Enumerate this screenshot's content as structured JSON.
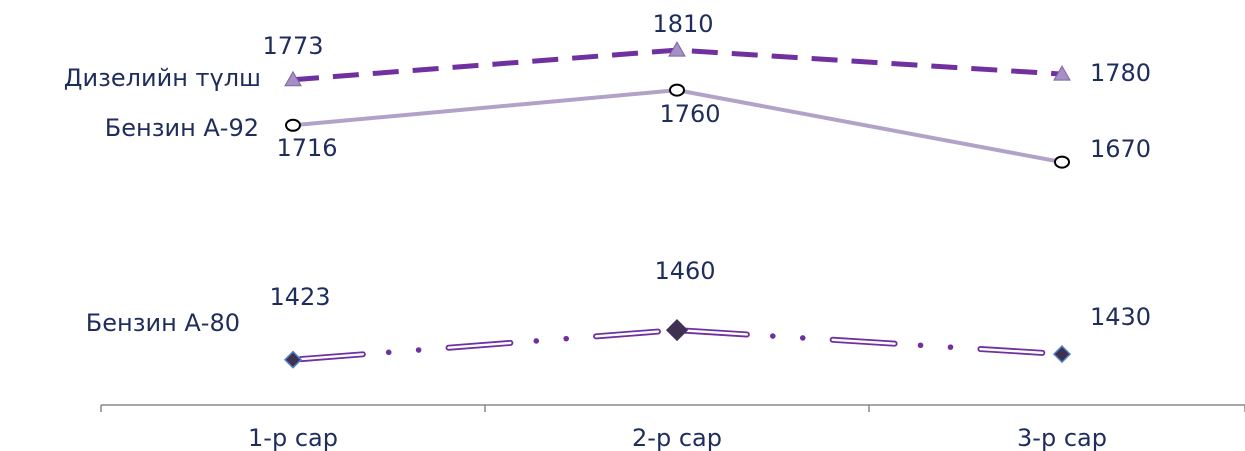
{
  "chart_data": {
    "type": "line",
    "title": "",
    "xlabel": "",
    "ylabel": "",
    "categories": [
      "1-р сар",
      "2-р сар",
      "3-р сар"
    ],
    "ylim": [
      1380,
      1840
    ],
    "grid": false,
    "series": [
      {
        "name": "Дизелийн түлш",
        "values": [
          1773,
          1810,
          1780
        ],
        "color": "#7030a0",
        "marker": "triangle",
        "marker_color": "#a58fc4",
        "line_style": "dashed"
      },
      {
        "name": "Бензин А-92",
        "values": [
          1716,
          1760,
          1670
        ],
        "color": "#b3a2c7",
        "marker": "circle",
        "marker_color": "#ffffff",
        "line_style": "solid"
      },
      {
        "name": "Бензин А-80",
        "values": [
          1423,
          1460,
          1430
        ],
        "color": "#7030a0",
        "marker": "diamond",
        "marker_color": "#3f3151",
        "line_style": "dash-dot-dot"
      }
    ]
  }
}
